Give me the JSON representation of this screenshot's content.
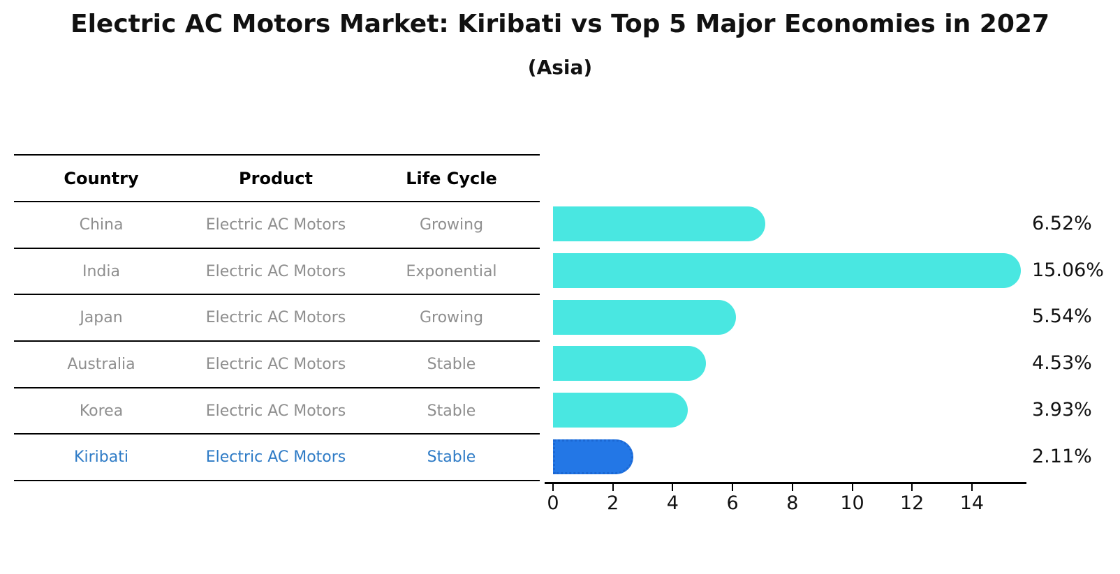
{
  "title": "Electric AC Motors Market: Kiribati vs Top 5 Major Economies in 2027",
  "subtitle": "(Asia)",
  "table": {
    "headers": [
      "Country",
      "Product",
      "Life Cycle"
    ],
    "rows": [
      {
        "country": "China",
        "product": "Electric AC Motors",
        "life_cycle": "Growing",
        "highlight": false
      },
      {
        "country": "India",
        "product": "Electric AC Motors",
        "life_cycle": "Exponential",
        "highlight": false
      },
      {
        "country": "Japan",
        "product": "Electric AC Motors",
        "life_cycle": "Growing",
        "highlight": false
      },
      {
        "country": "Australia",
        "product": "Electric AC Motors",
        "life_cycle": "Stable",
        "highlight": false
      },
      {
        "country": "Korea",
        "product": "Electric AC Motors",
        "life_cycle": "Stable",
        "highlight": false
      },
      {
        "country": "Kiribati",
        "product": "Electric AC Motors",
        "life_cycle": "Stable",
        "highlight": true
      }
    ]
  },
  "chart_data": {
    "type": "bar",
    "orientation": "horizontal",
    "title": "Electric AC Motors Market: Kiribati vs Top 5 Major Economies in 2027",
    "subtitle": "(Asia)",
    "categories": [
      "China",
      "India",
      "Japan",
      "Australia",
      "Korea",
      "Kiribati"
    ],
    "values": [
      6.52,
      15.06,
      5.54,
      4.53,
      3.93,
      2.11
    ],
    "value_labels": [
      "6.52%",
      "15.06%",
      "5.54%",
      "4.53%",
      "3.93%",
      "2.11%"
    ],
    "x_ticks": [
      0,
      2,
      4,
      6,
      8,
      10,
      12,
      14
    ],
    "xlim": [
      0,
      15.8
    ],
    "grid": false,
    "legend": false,
    "bar_color": "#49e7e1",
    "highlight_index": 5,
    "highlight_bar_color": "#2377e6",
    "highlight_border_color": "#1b67d2",
    "highlight_text_color": "#2e7bc6",
    "table_text_color": "#8e8e8e",
    "axis_color": "#000000",
    "label_color": "#111111"
  }
}
